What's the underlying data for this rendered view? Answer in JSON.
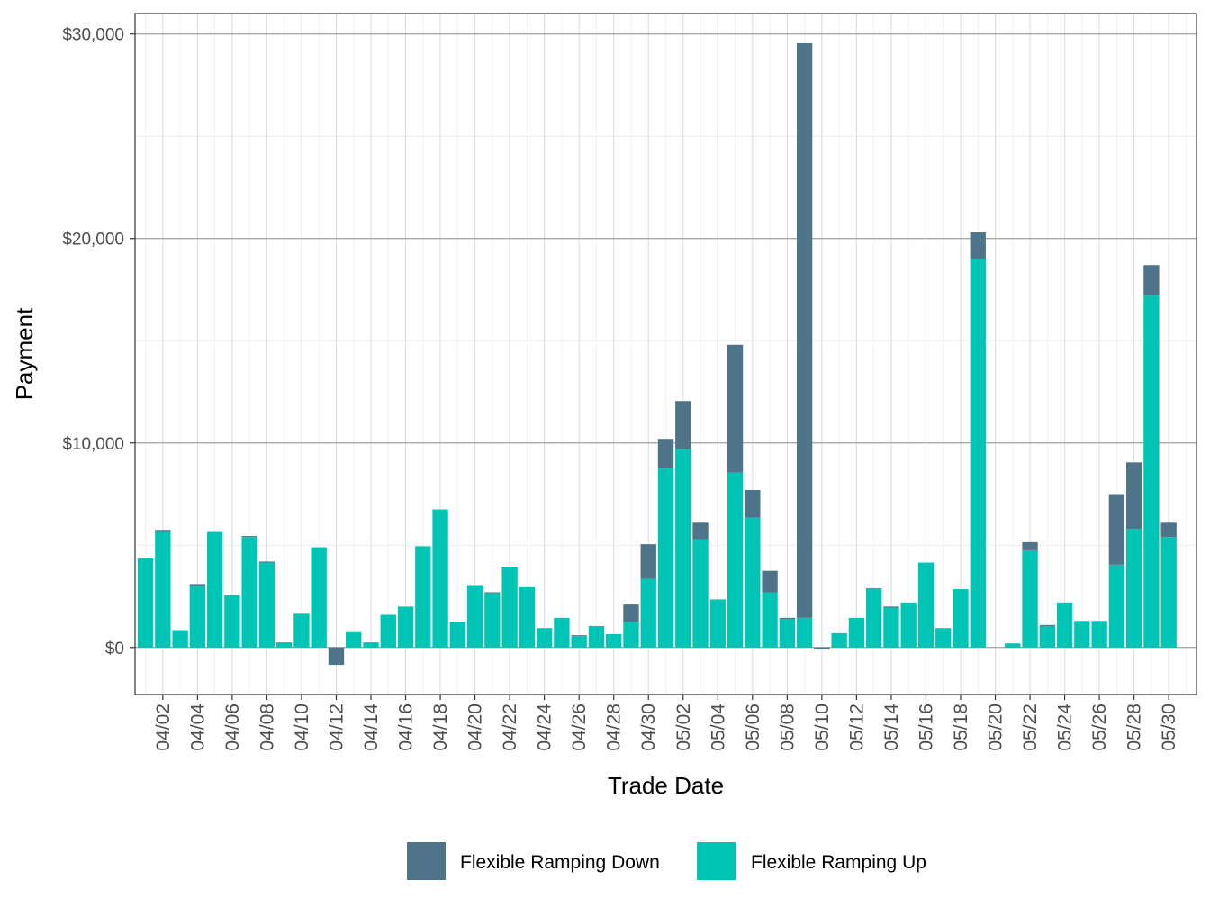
{
  "chart_data": {
    "type": "bar",
    "stacked": true,
    "xlabel": "Trade Date",
    "ylabel": "Payment",
    "ylim": [
      -2300,
      31000
    ],
    "yticks": [
      0,
      10000,
      20000,
      30000
    ],
    "ytick_labels": [
      "$0",
      "$10,000",
      "$20,000",
      "$30,000"
    ],
    "grid": true,
    "legend_position": "bottom",
    "dates": [
      "04/01",
      "04/02",
      "04/03",
      "04/04",
      "04/05",
      "04/06",
      "04/07",
      "04/08",
      "04/09",
      "04/10",
      "04/11",
      "04/12",
      "04/13",
      "04/14",
      "04/15",
      "04/16",
      "04/17",
      "04/18",
      "04/19",
      "04/20",
      "04/21",
      "04/22",
      "04/23",
      "04/24",
      "04/25",
      "04/26",
      "04/27",
      "04/28",
      "04/29",
      "04/30",
      "05/01",
      "05/02",
      "05/03",
      "05/04",
      "05/05",
      "05/06",
      "05/07",
      "05/08",
      "05/09",
      "05/10",
      "05/11",
      "05/12",
      "05/13",
      "05/14",
      "05/15",
      "05/16",
      "05/17",
      "05/18",
      "05/19",
      "05/20",
      "05/21",
      "05/22",
      "05/23",
      "05/24",
      "05/25",
      "05/26",
      "05/27",
      "05/28",
      "05/29",
      "05/30",
      "05/31"
    ],
    "xtick_labels": [
      "04/02",
      "04/04",
      "04/06",
      "04/08",
      "04/10",
      "04/12",
      "04/14",
      "04/16",
      "04/18",
      "04/20",
      "04/22",
      "04/24",
      "04/26",
      "04/28",
      "04/30",
      "05/02",
      "05/04",
      "05/06",
      "05/08",
      "05/10",
      "05/12",
      "05/14",
      "05/16",
      "05/18",
      "05/20",
      "05/22",
      "05/24",
      "05/26",
      "05/28",
      "05/30"
    ],
    "series": [
      {
        "name": "Flexible Ramping Up",
        "color": "#00c5b5",
        "values": [
          4350,
          5650,
          850,
          3000,
          5650,
          2550,
          5400,
          4150,
          250,
          1650,
          4900,
          0,
          750,
          250,
          1600,
          2000,
          4950,
          6750,
          1250,
          3050,
          2650,
          3950,
          2950,
          950,
          1450,
          550,
          1050,
          650,
          1250,
          3350,
          8750,
          9700,
          5300,
          2350,
          8550,
          6350,
          2700,
          1400,
          1450,
          0,
          700,
          1450,
          2900,
          1950,
          2200,
          4150,
          950,
          2850,
          19000,
          0,
          200,
          4750,
          1050,
          2200,
          1300,
          1300,
          4050,
          5800,
          17200,
          5400,
          0
        ]
      },
      {
        "name": "Flexible Ramping Down",
        "color": "#4f7489",
        "values": [
          0,
          100,
          0,
          100,
          0,
          0,
          50,
          50,
          0,
          0,
          0,
          -850,
          0,
          0,
          0,
          0,
          0,
          0,
          0,
          0,
          50,
          0,
          0,
          0,
          0,
          50,
          0,
          0,
          850,
          1700,
          1450,
          2350,
          800,
          0,
          6250,
          1350,
          1050,
          50,
          28100,
          -100,
          0,
          0,
          0,
          50,
          0,
          0,
          0,
          0,
          1300,
          0,
          0,
          400,
          50,
          0,
          0,
          0,
          3450,
          3250,
          1500,
          700,
          0
        ]
      }
    ],
    "legend": [
      "Flexible Ramping Down",
      "Flexible Ramping Up"
    ]
  }
}
